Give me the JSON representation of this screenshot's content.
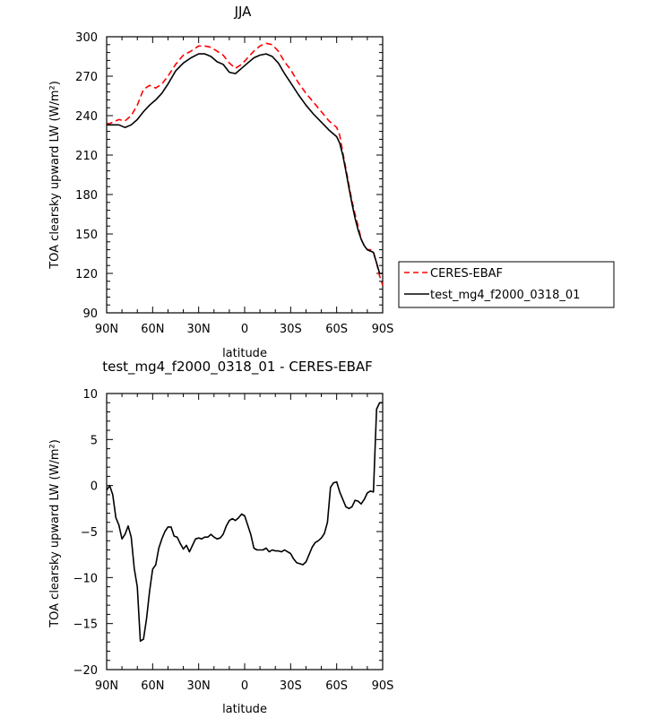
{
  "chart_data": [
    {
      "type": "line",
      "title": "JJA",
      "xlabel": "latitude",
      "ylabel": "TOA clearsky upward LW (W/m²)",
      "xlim": [
        90,
        -90
      ],
      "ylim": [
        90,
        300
      ],
      "xticks": [
        90,
        60,
        30,
        0,
        -30,
        -60,
        -90
      ],
      "xtick_labels": [
        "90N",
        "60N",
        "30N",
        "0",
        "30S",
        "60S",
        "90S"
      ],
      "yticks": [
        90,
        120,
        150,
        180,
        210,
        240,
        270,
        300
      ],
      "ytick_labels": [
        "90",
        "120",
        "150",
        "180",
        "210",
        "240",
        "270",
        "300"
      ],
      "legend": {
        "placement": "outside-right"
      },
      "series": [
        {
          "name": "CERES-EBAF",
          "color": "#ff0000",
          "dash": "dashed",
          "x": [
            90,
            86,
            82,
            78,
            74,
            70,
            66,
            62,
            58,
            54,
            50,
            45,
            40,
            35,
            30,
            26,
            22,
            18,
            14,
            10,
            6,
            2,
            -2,
            -6,
            -10,
            -14,
            -18,
            -22,
            -26,
            -30,
            -35,
            -40,
            -45,
            -50,
            -55,
            -60,
            -62,
            -64,
            -66,
            -68,
            -70,
            -72,
            -74,
            -76,
            -78,
            -80,
            -82,
            -84,
            -86,
            -88,
            -90
          ],
          "y": [
            233,
            235,
            237,
            236,
            240,
            248,
            260,
            263,
            261,
            264,
            270,
            279,
            286,
            289,
            293,
            293,
            292,
            289,
            286,
            280,
            276,
            279,
            284,
            289,
            293,
            295,
            294,
            289,
            281,
            275,
            265,
            257,
            250,
            243,
            236,
            231,
            225,
            212,
            200,
            187,
            175,
            165,
            156,
            146,
            141,
            138,
            138,
            136,
            128,
            118,
            111
          ]
        },
        {
          "name": "test_mg4_f2000_0318_01",
          "color": "#000000",
          "dash": "solid",
          "x": [
            90,
            86,
            82,
            78,
            74,
            70,
            66,
            62,
            58,
            54,
            50,
            45,
            40,
            35,
            30,
            26,
            22,
            18,
            14,
            10,
            6,
            2,
            -2,
            -6,
            -10,
            -14,
            -18,
            -22,
            -26,
            -30,
            -35,
            -40,
            -45,
            -50,
            -55,
            -60,
            -62,
            -64,
            -66,
            -68,
            -70,
            -72,
            -74,
            -76,
            -78,
            -80,
            -82,
            -84,
            -86,
            -88,
            -90
          ],
          "y": [
            233,
            233,
            233,
            231,
            233,
            237,
            243,
            248,
            252,
            257,
            264,
            274,
            280,
            284,
            287,
            287,
            285,
            281,
            279,
            273,
            272,
            276,
            280,
            284,
            286,
            287,
            285,
            280,
            272,
            265,
            256,
            248,
            241,
            235,
            229,
            224,
            219,
            210,
            198,
            185,
            173,
            162,
            153,
            146,
            141,
            138,
            137,
            136,
            128,
            120,
            120
          ]
        }
      ]
    },
    {
      "type": "line",
      "title": "test_mg4_f2000_0318_01 - CERES-EBAF",
      "xlabel": "latitude",
      "ylabel": "TOA clearsky upward LW (W/m²)",
      "xlim": [
        90,
        -90
      ],
      "ylim": [
        -20,
        10
      ],
      "xticks": [
        90,
        60,
        30,
        0,
        -30,
        -60,
        -90
      ],
      "xtick_labels": [
        "90N",
        "60N",
        "30N",
        "0",
        "30S",
        "60S",
        "90S"
      ],
      "yticks": [
        -20,
        -15,
        -10,
        -5,
        0,
        5,
        10
      ],
      "ytick_labels": [
        "−20",
        "−15",
        "−10",
        "−5",
        "0",
        "5",
        "10"
      ],
      "series": [
        {
          "color": "#000000",
          "dash": "solid",
          "x": [
            90,
            88,
            86,
            84,
            82,
            80,
            78,
            76,
            74,
            72,
            70,
            68,
            66,
            64,
            62,
            60,
            58,
            56,
            54,
            52,
            50,
            48,
            46,
            44,
            42,
            40,
            38,
            36,
            34,
            32,
            30,
            28,
            26,
            24,
            22,
            20,
            18,
            16,
            14,
            12,
            10,
            8,
            6,
            4,
            2,
            0,
            -2,
            -4,
            -6,
            -8,
            -10,
            -12,
            -14,
            -16,
            -18,
            -20,
            -22,
            -24,
            -26,
            -28,
            -30,
            -32,
            -34,
            -36,
            -38,
            -40,
            -42,
            -44,
            -46,
            -48,
            -50,
            -52,
            -54,
            -56,
            -58,
            -60,
            -62,
            -64,
            -66,
            -68,
            -70,
            -72,
            -74,
            -76,
            -78,
            -80,
            -82,
            -84,
            -86,
            -88,
            -90
          ],
          "y": [
            -0.5,
            0.0,
            -1.0,
            -3.5,
            -4.3,
            -5.8,
            -5.3,
            -4.4,
            -5.6,
            -9.0,
            -11.0,
            -16.9,
            -16.7,
            -14.5,
            -11.5,
            -9.1,
            -8.6,
            -6.8,
            -5.8,
            -5.0,
            -4.5,
            -4.5,
            -5.5,
            -5.6,
            -6.3,
            -6.9,
            -6.5,
            -7.2,
            -6.5,
            -5.8,
            -5.7,
            -5.8,
            -5.6,
            -5.6,
            -5.3,
            -5.6,
            -5.8,
            -5.7,
            -5.3,
            -4.4,
            -3.8,
            -3.6,
            -3.8,
            -3.5,
            -3.1,
            -3.3,
            -4.3,
            -5.3,
            -6.8,
            -7.0,
            -7.0,
            -7.0,
            -6.8,
            -7.2,
            -7.0,
            -7.1,
            -7.1,
            -7.2,
            -7.0,
            -7.2,
            -7.4,
            -8.0,
            -8.4,
            -8.5,
            -8.6,
            -8.3,
            -7.5,
            -6.7,
            -6.2,
            -6.0,
            -5.7,
            -5.2,
            -4.0,
            -0.2,
            0.3,
            0.4,
            -0.7,
            -1.5,
            -2.3,
            -2.5,
            -2.3,
            -1.6,
            -1.7,
            -2.0,
            -1.5,
            -0.8,
            -0.6,
            -0.7,
            8.3,
            9.0,
            9.0
          ]
        }
      ]
    }
  ]
}
